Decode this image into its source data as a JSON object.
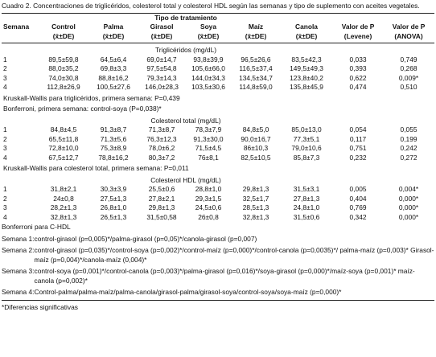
{
  "caption": "Cuadro 2. Concentraciones de triglicéridos, colesterol total y colesterol HDL según las semanas y tipo de suplemento con aceites vegetales.",
  "table": {
    "group_header": "Tipo de tratamiento",
    "columns": [
      {
        "name": "Semana"
      },
      {
        "name": "Control",
        "sub": "(x̄±DE)"
      },
      {
        "name": "Palma",
        "sub": "(x̄±DE)"
      },
      {
        "name": "Girasol",
        "sub": "(x̄±DE)"
      },
      {
        "name": "Soya",
        "sub": "(x̄±DE)"
      },
      {
        "name": "Maíz",
        "sub": "(x̄±DE)"
      },
      {
        "name": "Canola",
        "sub": "(x̄±DE)"
      },
      {
        "name": "Valor de P",
        "sub": "(Levene)"
      },
      {
        "name": "Valor de P",
        "sub": "(ANOVA)"
      }
    ],
    "sections": [
      {
        "title": "Triglicéridos (mg/dL)",
        "rows": [
          [
            "1",
            "89,5±59,8",
            "64,5±6,4",
            "69,0±14,7",
            "93,8±39,9",
            "96,5±26,6",
            "83,5±42,3",
            "0,033",
            "0,749"
          ],
          [
            "2",
            "88,0±35,2",
            "69,8±3,3",
            "97,5±54,8",
            "105,6±66,0",
            "116,5±37,4",
            "149,5±49,3",
            "0,393",
            "0,268"
          ],
          [
            "3",
            "74,0±30,8",
            "88,8±16,2",
            "79,3±14,3",
            "144,0±34,3",
            "134,5±34,7",
            "123,8±40,2",
            "0,622",
            "0,009*"
          ],
          [
            "4",
            "112,8±26,9",
            "100,5±27,6",
            "146,0±28,3",
            "103,5±30,6",
            "114,8±59,0",
            "135,8±45,9",
            "0,474",
            "0,510"
          ]
        ],
        "notes": [
          "Kruskall-Wallis para triglicéridos, primera semana: P=0,439",
          "Bonferroni, primera semana: control-soya (P=0,038)*"
        ]
      },
      {
        "title": "Colesterol total (mg/dL)",
        "rows": [
          [
            "1",
            "84,8±4,5",
            "91,3±8,7",
            "71,3±8,7",
            "78,3±7,9",
            "84,8±5,0",
            "85,0±13,0",
            "0,054",
            "0,055"
          ],
          [
            "2",
            "65,5±11,8",
            "71,3±5,6",
            "76,3±12,3",
            "91,3±30,0",
            "90,0±16,7",
            "77,3±5,1",
            "0,117",
            "0,199"
          ],
          [
            "3",
            "72,8±10,0",
            "75,3±8,9",
            "78,0±6,2",
            "71,5±4,5",
            "86±10,3",
            "79,0±10,6",
            "0,751",
            "0,242"
          ],
          [
            "4",
            "67,5±12,7",
            "78,8±16,2",
            "80,3±7,2",
            "76±8,1",
            "82,5±10,5",
            "85,8±7,3",
            "0,232",
            "0,272"
          ]
        ],
        "notes": [
          "Kruskall-Wallis para colesterol total, primera semana: P=0,011"
        ]
      },
      {
        "title": "Colesterol HDL (mg/dL)",
        "rows": [
          [
            "1",
            "31,8±2,1",
            "30,3±3,9",
            "25,5±0,6",
            "28,8±1,0",
            "29,8±1,3",
            "31,5±3,1",
            "0,005",
            "0,004*"
          ],
          [
            "2",
            "24±0,8",
            "27,5±1,3",
            "27,8±2,1",
            "29,3±1,5",
            "32,5±1,7",
            "27,8±1,3",
            "0,404",
            "0,000*"
          ],
          [
            "3",
            "28,2±1,3",
            "26,8±1,0",
            "29,8±1,3",
            "24,5±0,6",
            "28,5±1,3",
            "24,8±1,0",
            "0,769",
            "0,000*"
          ],
          [
            "4",
            "32,8±1,3",
            "26,5±1,3",
            "31,5±0,58",
            "26±0,8",
            "32,8±1,3",
            "31,5±0,6",
            "0,342",
            "0,000*"
          ]
        ],
        "notes": []
      }
    ]
  },
  "bonferroni": {
    "title": "Bonferroni para C-HDL",
    "items": [
      {
        "week": "Semana 1:",
        "text": "control-girasol (p=0,005)*/palma-girasol (p=0,05)*/canola-girasol (p=0,007)"
      },
      {
        "week": "Semana 2:",
        "text": "control-girasol (p=0,035)*/control-soya (p=0,002)*/control-maíz (p=0,000)*/control-canola (p=0,0035)*/ palma-maíz (p=0,003)* Girasol-maíz (p=0,004)*/canola-maíz (0,004)*"
      },
      {
        "week": "Semana 3:",
        "text": "control-soya (p=0,001)*/control-canola (p=0,003)*/palma-girasol (p=0,016)*/soya-girasol (p=0,000)*/maíz-soya (p=0,001)* maíz-canola (p=0,002)*"
      },
      {
        "week": "Semana 4:",
        "text": "Control-palma/palma-maíz/palma-canola/girasol-palma/girasol-soya/control-soya/soya-maíz (p=0,000)*"
      }
    ]
  },
  "footnote": "*Diferencias significativas"
}
